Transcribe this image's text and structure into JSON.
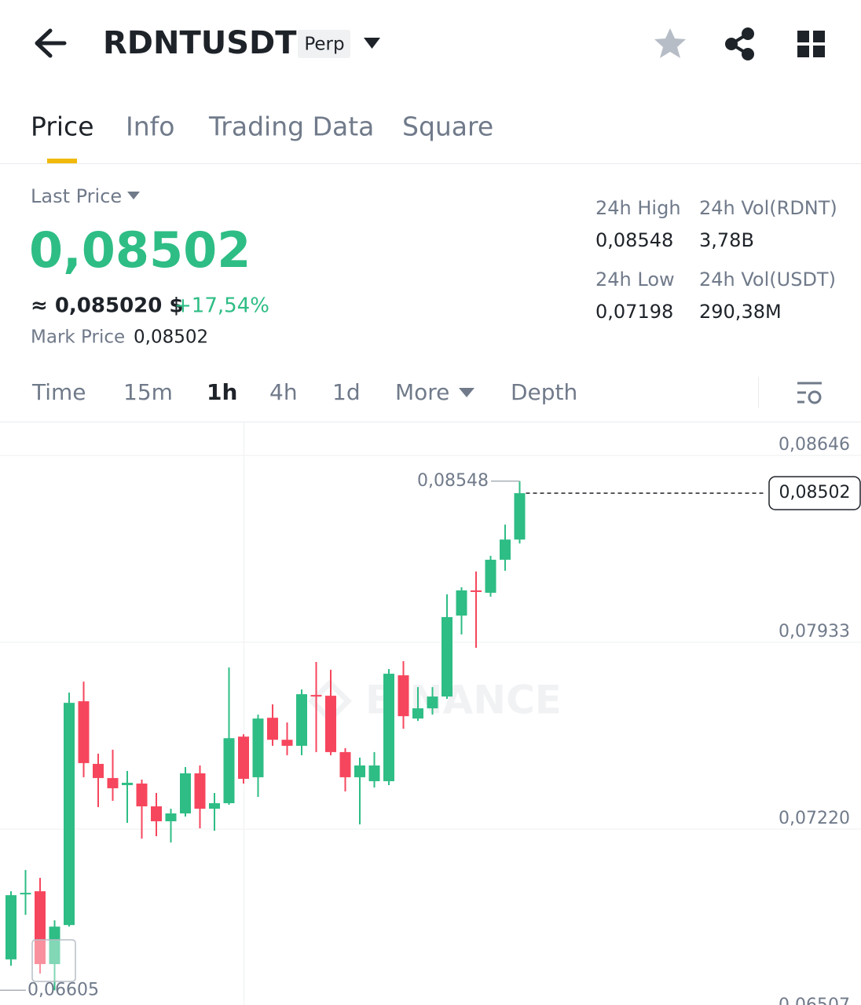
{
  "header": {
    "symbol": "RDNTUSDT",
    "badge": "Perp"
  },
  "tabs": [
    "Price",
    "Info",
    "Trading Data",
    "Square"
  ],
  "price_panel": {
    "last_price_label": "Last Price",
    "last_price": "0,08502",
    "approx": "≈ 0,085020 $",
    "change": "+17,54%",
    "mark_price_label": "Mark Price",
    "mark_price": "0,08502"
  },
  "stats": [
    {
      "label": "24h High",
      "value": "0,08548"
    },
    {
      "label": "24h Vol(RDNT)",
      "value": "3,78B"
    },
    {
      "label": "24h Low",
      "value": "0,07198"
    },
    {
      "label": "24h Vol(USDT)",
      "value": "290,38M"
    }
  ],
  "intervals": [
    "Time",
    "15m",
    "1h",
    "4h",
    "1d",
    "More",
    "Depth"
  ],
  "chart_data": {
    "type": "candlestick",
    "watermark": "BINANCE",
    "categories": [
      null,
      null,
      null,
      null,
      null,
      null,
      null,
      null,
      null,
      null,
      null,
      null,
      null,
      null,
      null,
      null,
      null,
      null,
      null,
      null,
      null,
      null,
      null,
      null,
      null,
      null,
      null,
      null,
      null,
      null,
      null,
      null,
      null,
      null,
      null,
      null
    ],
    "open": [
      0.06723,
      0.06971,
      0.06983,
      0.06705,
      0.06854,
      0.07708,
      0.07469,
      0.07415,
      0.07388,
      0.07394,
      0.07307,
      0.0725,
      0.0728,
      0.07433,
      0.07298,
      0.07319,
      0.07573,
      0.07418,
      0.07645,
      0.07561,
      0.07538,
      0.07732,
      0.07729,
      0.07514,
      0.07418,
      0.07403,
      0.07403,
      0.07807,
      0.07642,
      0.07681,
      0.07726,
      0.08035,
      0.08131,
      0.08122,
      0.08248,
      0.08325
    ],
    "high": [
      0.06983,
      0.07064,
      0.07034,
      0.06872,
      0.07741,
      0.07783,
      0.07508,
      0.07523,
      0.07442,
      0.07409,
      0.07358,
      0.07298,
      0.07457,
      0.07463,
      0.07358,
      0.07837,
      0.07582,
      0.07657,
      0.07696,
      0.07627,
      0.07753,
      0.07858,
      0.07828,
      0.07529,
      0.07493,
      0.07514,
      0.07831,
      0.07861,
      0.07762,
      0.07762,
      0.08116,
      0.08143,
      0.08203,
      0.08263,
      0.08382,
      0.08548
    ],
    "low": [
      0.06699,
      0.06893,
      0.06669,
      0.06605,
      0.06848,
      0.07418,
      0.07304,
      0.07328,
      0.07244,
      0.07184,
      0.07193,
      0.07169,
      0.07268,
      0.07223,
      0.07214,
      0.07313,
      0.07394,
      0.07343,
      0.07538,
      0.07502,
      0.07502,
      0.07514,
      0.07502,
      0.07364,
      0.07238,
      0.07379,
      0.07388,
      0.07603,
      0.07633,
      0.07657,
      0.07717,
      0.07963,
      0.07912,
      0.08107,
      0.08206,
      0.0831
    ],
    "close": [
      0.06968,
      0.06977,
      0.06705,
      0.06848,
      0.07702,
      0.07472,
      0.07415,
      0.07376,
      0.07397,
      0.07307,
      0.0725,
      0.0728,
      0.07433,
      0.07298,
      0.07319,
      0.07567,
      0.07412,
      0.07642,
      0.07561,
      0.07538,
      0.07735,
      0.07729,
      0.07514,
      0.07418,
      0.07463,
      0.07463,
      0.07813,
      0.07651,
      0.07681,
      0.07726,
      0.08029,
      0.08131,
      0.08125,
      0.08248,
      0.08325,
      0.08502
    ],
    "up_color": "#2ebd85",
    "down_color": "#f6465d",
    "ylim": [
      0.06507,
      0.08772
    ],
    "yticks": [
      {
        "value": 0.08646,
        "label": "0,08646"
      },
      {
        "value": 0.07933,
        "label": "0,07933"
      },
      {
        "value": 0.0722,
        "label": "0,07220"
      },
      {
        "value": 0.06507,
        "label": "0,06507"
      }
    ],
    "grid": true,
    "high_marker": {
      "value": 0.08548,
      "label": "0,08548"
    },
    "low_marker": {
      "value": 0.06605,
      "label": "0,06605"
    },
    "last_marker": {
      "value": 0.08502,
      "label": "0,08502"
    }
  }
}
